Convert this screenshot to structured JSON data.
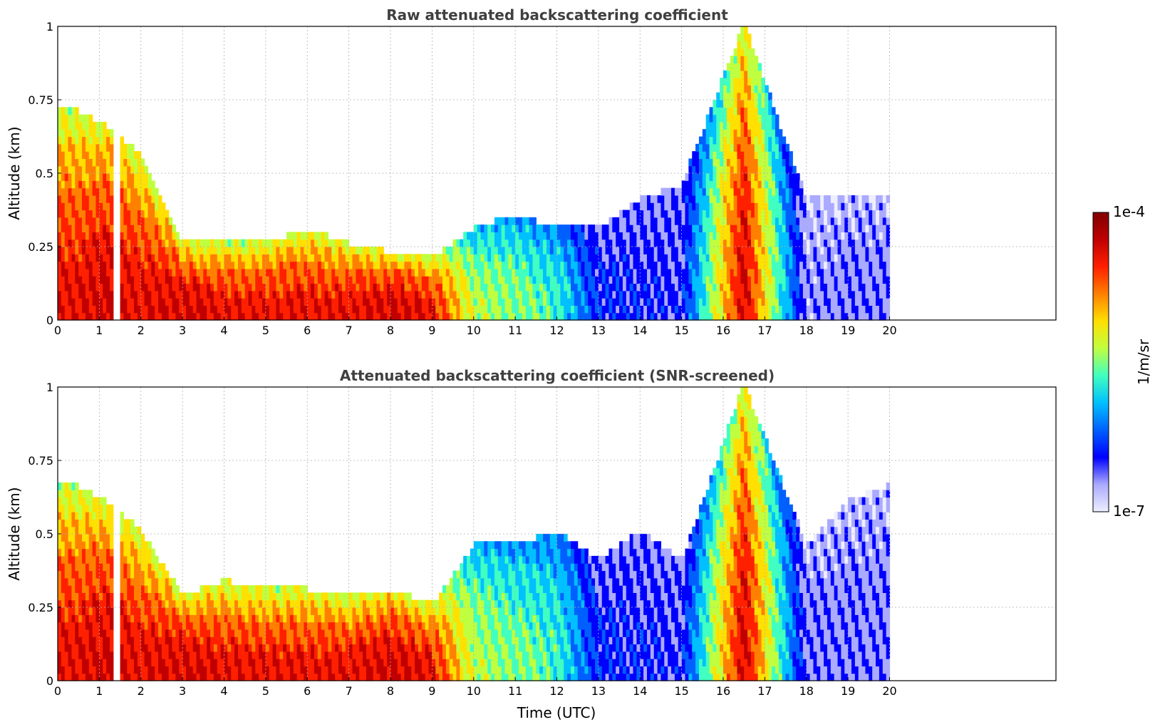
{
  "chart_data": [
    {
      "type": "heatmap",
      "title": "Raw attenuated backscattering coefficient",
      "xlabel": "",
      "ylabel": "Altitude (km)",
      "xlim": [
        0,
        24
      ],
      "ylim": [
        0,
        1
      ],
      "xticks": [
        "0",
        "1",
        "2",
        "3",
        "4",
        "5",
        "6",
        "7",
        "8",
        "9",
        "10",
        "11",
        "12",
        "13",
        "14",
        "15",
        "16",
        "17",
        "18",
        "19",
        "20"
      ],
      "yticks": [
        "0",
        "0.25",
        "0.5",
        "0.75",
        "1"
      ],
      "grid": true,
      "data_coverage_hours": [
        0,
        20
      ],
      "data_gap_hours": [
        1.35,
        1.5
      ],
      "colormap": "jet",
      "profiles": [
        {
          "t": 0.5,
          "level": 0.85,
          "top": 0.7
        },
        {
          "t": 1.2,
          "level": 0.9,
          "top": 0.65
        },
        {
          "t": 2.0,
          "level": 0.85,
          "top": 0.55
        },
        {
          "t": 3.0,
          "level": 0.9,
          "top": 0.25
        },
        {
          "t": 4.0,
          "level": 0.85,
          "top": 0.25
        },
        {
          "t": 5.0,
          "level": 0.85,
          "top": 0.25
        },
        {
          "t": 6.0,
          "level": 0.85,
          "top": 0.3
        },
        {
          "t": 7.0,
          "level": 0.85,
          "top": 0.25
        },
        {
          "t": 8.0,
          "level": 0.9,
          "top": 0.22
        },
        {
          "t": 9.0,
          "level": 0.85,
          "top": 0.2
        },
        {
          "t": 10.0,
          "level": 0.55,
          "top": 0.3
        },
        {
          "t": 11.0,
          "level": 0.5,
          "top": 0.35
        },
        {
          "t": 12.0,
          "level": 0.45,
          "top": 0.3
        },
        {
          "t": 13.0,
          "level": 0.2,
          "top": 0.3
        },
        {
          "t": 14.0,
          "level": 0.18,
          "top": 0.4
        },
        {
          "t": 15.0,
          "level": 0.17,
          "top": 0.45
        },
        {
          "t": 16.5,
          "level": 0.9,
          "top": 1.0
        },
        {
          "t": 18.0,
          "level": 0.1,
          "top": 0.4
        },
        {
          "t": 19.0,
          "level": 0.12,
          "top": 0.4
        },
        {
          "t": 19.9,
          "level": 0.12,
          "top": 0.4
        }
      ]
    },
    {
      "type": "heatmap",
      "title": "Attenuated backscattering coefficient (SNR-screened)",
      "xlabel": "Time (UTC)",
      "ylabel": "Altitude (km)",
      "xlim": [
        0,
        24
      ],
      "ylim": [
        0,
        1
      ],
      "xticks": [
        "0",
        "1",
        "2",
        "3",
        "4",
        "5",
        "6",
        "7",
        "8",
        "9",
        "10",
        "11",
        "12",
        "13",
        "14",
        "15",
        "16",
        "17",
        "18",
        "19",
        "20"
      ],
      "yticks": [
        "0",
        "0.25",
        "0.5",
        "0.75",
        "1"
      ],
      "grid": true,
      "data_coverage_hours": [
        0,
        20
      ],
      "data_gap_hours": [
        1.35,
        1.5
      ],
      "colormap": "jet",
      "profiles": [
        {
          "t": 0.5,
          "level": 0.85,
          "top": 0.65
        },
        {
          "t": 1.2,
          "level": 0.9,
          "top": 0.6
        },
        {
          "t": 2.0,
          "level": 0.85,
          "top": 0.5
        },
        {
          "t": 3.0,
          "level": 0.9,
          "top": 0.28
        },
        {
          "t": 4.0,
          "level": 0.85,
          "top": 0.33
        },
        {
          "t": 5.0,
          "level": 0.85,
          "top": 0.3
        },
        {
          "t": 6.0,
          "level": 0.85,
          "top": 0.3
        },
        {
          "t": 7.0,
          "level": 0.85,
          "top": 0.28
        },
        {
          "t": 8.0,
          "level": 0.9,
          "top": 0.3
        },
        {
          "t": 9.0,
          "level": 0.85,
          "top": 0.25
        },
        {
          "t": 10.0,
          "level": 0.55,
          "top": 0.45
        },
        {
          "t": 11.0,
          "level": 0.5,
          "top": 0.45
        },
        {
          "t": 12.0,
          "level": 0.45,
          "top": 0.5
        },
        {
          "t": 13.0,
          "level": 0.2,
          "top": 0.4
        },
        {
          "t": 14.0,
          "level": 0.18,
          "top": 0.5
        },
        {
          "t": 15.0,
          "level": 0.17,
          "top": 0.4
        },
        {
          "t": 16.5,
          "level": 0.9,
          "top": 1.0
        },
        {
          "t": 18.0,
          "level": 0.12,
          "top": 0.45
        },
        {
          "t": 19.0,
          "level": 0.12,
          "top": 0.6
        },
        {
          "t": 19.9,
          "level": 0.12,
          "top": 0.65
        }
      ]
    }
  ],
  "colorbar": {
    "label": "1/m/sr",
    "max_label": "1e-4",
    "min_label": "1e-7",
    "scale": "log",
    "range": [
      1e-07,
      0.0001
    ],
    "colors": [
      "#eeeeff",
      "#aaaaff",
      "#0000ff",
      "#0060ff",
      "#00c0ff",
      "#40ffc0",
      "#c0ff40",
      "#ffe000",
      "#ff8000",
      "#ff2000",
      "#c00000",
      "#800000"
    ]
  }
}
